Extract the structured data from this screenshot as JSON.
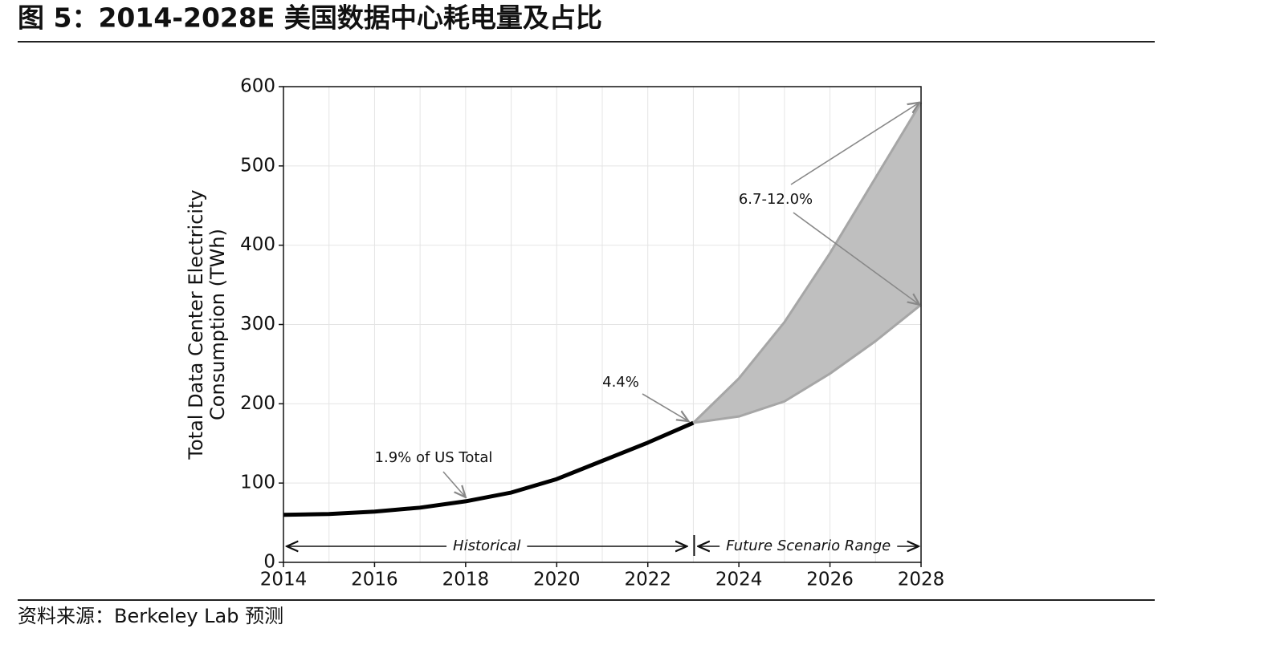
{
  "chart_data": {
    "type": "line",
    "title": "图 5：2014-2028E 美国数据中心耗电量及占比",
    "source": "资料来源：Berkeley Lab 预测",
    "ylabel": [
      "Total Data Center Electricity",
      "Consumption (TWh)"
    ],
    "x": [
      2014,
      2015,
      2016,
      2017,
      2018,
      2019,
      2020,
      2021,
      2022,
      2023,
      2024,
      2025,
      2026,
      2027,
      2028
    ],
    "series": [
      {
        "color": "#000000",
        "values": [
          60,
          61,
          64,
          69,
          77,
          88,
          105,
          128,
          151,
          176,
          null,
          null,
          null,
          null,
          null
        ]
      },
      {
        "color": "#a6a6a6",
        "values": [
          null,
          null,
          null,
          null,
          null,
          null,
          null,
          null,
          null,
          176,
          184,
          203,
          238,
          279,
          325
        ]
      },
      {
        "color": "#a6a6a6",
        "values": [
          null,
          null,
          null,
          null,
          null,
          null,
          null,
          null,
          null,
          176,
          232,
          303,
          390,
          485,
          580
        ]
      }
    ],
    "fill_between": {
      "lower": 1,
      "upper": 2,
      "color": "#bfbfbf"
    },
    "annotations": [
      {
        "text": "1.9% of US Total"
      },
      {
        "text": "4.4%"
      },
      {
        "text": "6.7-12.0%"
      }
    ],
    "spans": [
      {
        "text": "Historical"
      },
      {
        "text": "Future Scenario Range"
      }
    ],
    "xlim": [
      2014,
      2028
    ],
    "xticks": [
      2014,
      2016,
      2018,
      2020,
      2022,
      2024,
      2026,
      2028
    ],
    "ylim": [
      0,
      600
    ],
    "yticks": [
      0,
      100,
      200,
      300,
      400,
      500,
      600
    ],
    "grid": true
  }
}
